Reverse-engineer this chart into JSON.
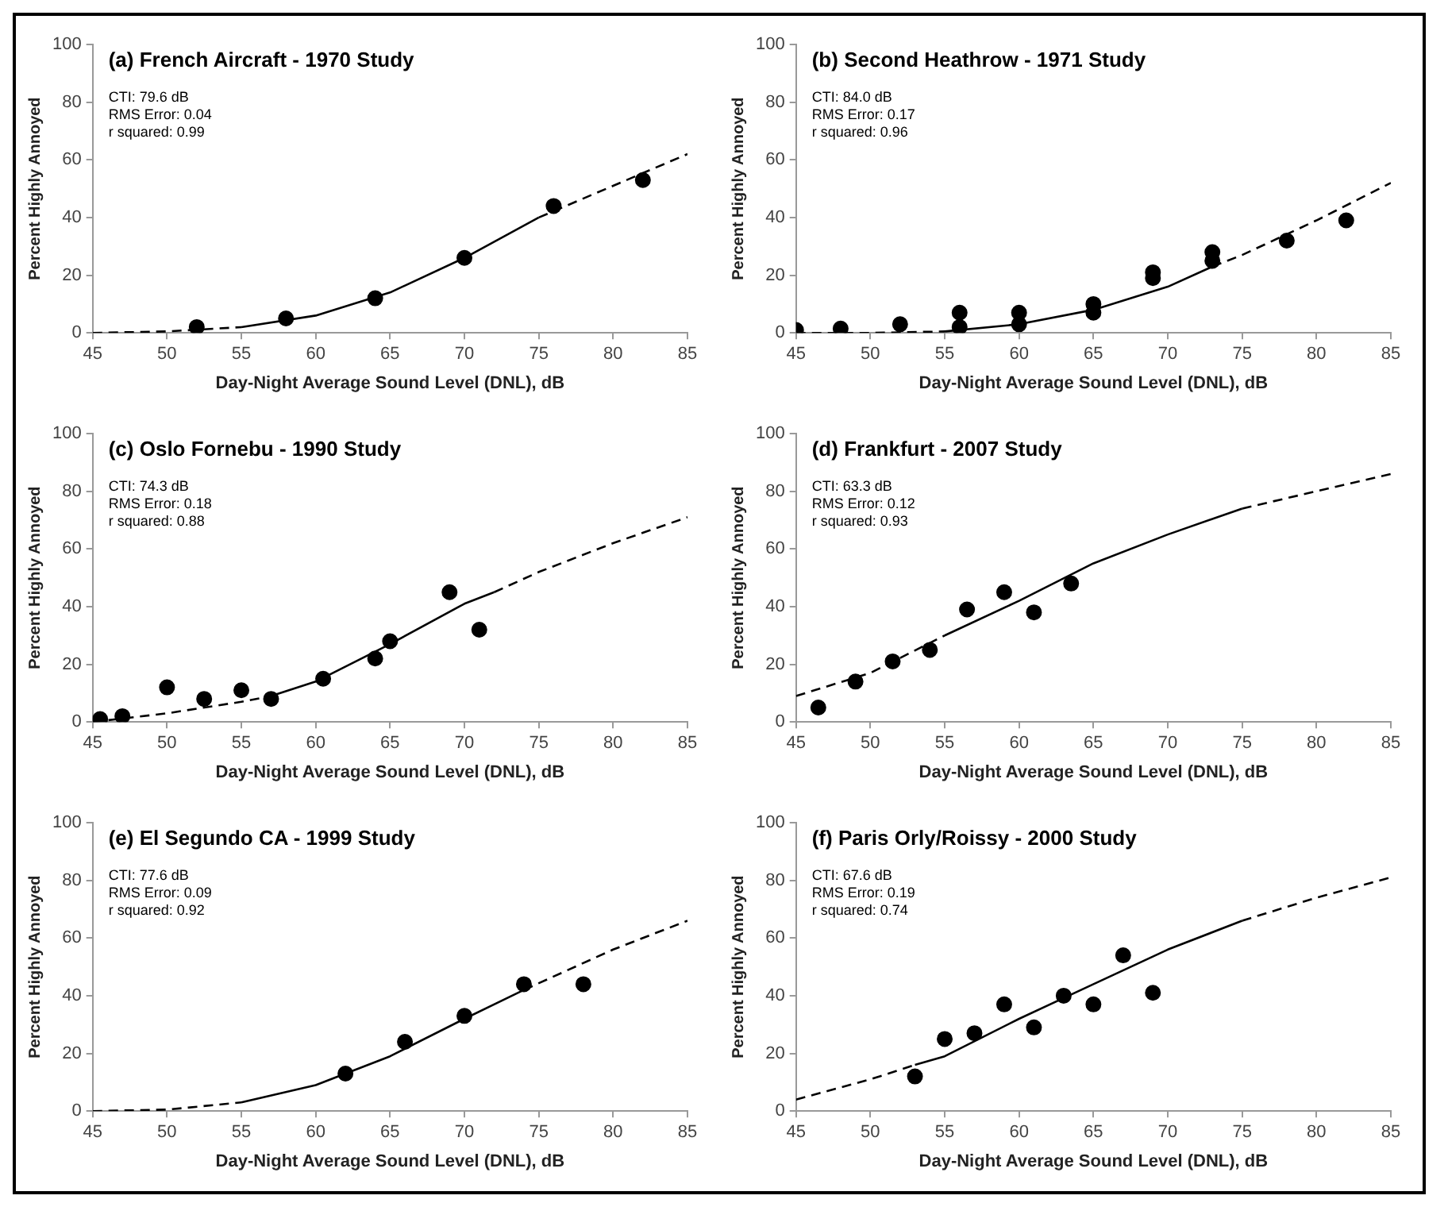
{
  "chart_data": [
    {
      "type": "scatter",
      "title": "(a) French Aircraft - 1970 Study",
      "xlabel": "Day-Night Average Sound Level (DNL), dB",
      "ylabel": "Percent Highly Annoyed",
      "xlim": [
        45,
        85
      ],
      "xticks": [
        45,
        50,
        55,
        60,
        65,
        70,
        75,
        80,
        85
      ],
      "ylim": [
        0,
        100
      ],
      "yticks": [
        0,
        20,
        40,
        60,
        80,
        100
      ],
      "annotations": [
        "CTI: 79.6 dB",
        "RMS Error: 0.04",
        "r squared: 0.99"
      ],
      "series": [
        {
          "type": "scatter",
          "marker": "circle",
          "color": "#000000",
          "x": [
            52,
            58,
            64,
            70,
            76,
            82
          ],
          "values": [
            2,
            5,
            12,
            26,
            44,
            53
          ]
        },
        {
          "type": "line",
          "line_style": "solid",
          "color": "#000000",
          "x": [
            55,
            60,
            65,
            70,
            75
          ],
          "values": [
            2,
            6,
            14,
            26,
            40
          ]
        },
        {
          "type": "line",
          "line_style": "dashed",
          "color": "#000000",
          "x": [
            45,
            50,
            55,
            65,
            75,
            80,
            85
          ],
          "values": [
            0,
            0.5,
            2,
            null,
            40,
            51,
            62
          ]
        }
      ]
    },
    {
      "type": "scatter",
      "title": "(b) Second Heathrow - 1971 Study",
      "xlabel": "Day-Night Average Sound Level (DNL), dB",
      "ylabel": "Percent Highly Annoyed",
      "xlim": [
        45,
        85
      ],
      "xticks": [
        45,
        50,
        55,
        60,
        65,
        70,
        75,
        80,
        85
      ],
      "ylim": [
        0,
        100
      ],
      "yticks": [
        0,
        20,
        40,
        60,
        80,
        100
      ],
      "annotations": [
        "CTI: 84.0 dB",
        "RMS Error: 0.17",
        "r squared: 0.96"
      ],
      "series": [
        {
          "type": "scatter",
          "marker": "circle",
          "color": "#000000",
          "x": [
            45,
            48,
            52,
            56,
            56,
            60,
            60,
            65,
            65,
            69,
            69,
            73,
            73,
            78,
            82
          ],
          "values": [
            1,
            1.5,
            3,
            7,
            2,
            7,
            3,
            10,
            7,
            21,
            19,
            28,
            25,
            32,
            39
          ]
        },
        {
          "type": "line",
          "line_style": "solid",
          "color": "#000000",
          "x": [
            55,
            60,
            65,
            70,
            73
          ],
          "values": [
            0.5,
            3,
            8,
            16,
            23
          ]
        },
        {
          "type": "line",
          "line_style": "dashed",
          "color": "#000000",
          "x": [
            45,
            50,
            55,
            65,
            73,
            75,
            80,
            85
          ],
          "values": [
            0,
            0,
            0.5,
            null,
            23,
            27,
            39,
            52
          ]
        }
      ]
    },
    {
      "type": "scatter",
      "title": "(c) Oslo Fornebu - 1990 Study",
      "xlabel": "Day-Night Average Sound Level (DNL), dB",
      "ylabel": "Percent Highly Annoyed",
      "xlim": [
        45,
        85
      ],
      "xticks": [
        45,
        50,
        55,
        60,
        65,
        70,
        75,
        80,
        85
      ],
      "ylim": [
        0,
        100
      ],
      "yticks": [
        0,
        20,
        40,
        60,
        80,
        100
      ],
      "annotations": [
        "CTI: 74.3 dB",
        "RMS Error: 0.18",
        "r squared: 0.88"
      ],
      "series": [
        {
          "type": "scatter",
          "marker": "circle",
          "color": "#000000",
          "x": [
            45.5,
            47,
            50,
            52.5,
            55,
            57,
            60.5,
            64,
            65,
            69,
            71
          ],
          "values": [
            1,
            2,
            12,
            8,
            11,
            8,
            15,
            22,
            28,
            45,
            32
          ]
        },
        {
          "type": "line",
          "line_style": "solid",
          "color": "#000000",
          "x": [
            57,
            60,
            65,
            70,
            72
          ],
          "values": [
            9,
            14,
            27,
            41,
            45
          ]
        },
        {
          "type": "line",
          "line_style": "dashed",
          "color": "#000000",
          "x": [
            45,
            50,
            55,
            57,
            65,
            72,
            75,
            80,
            85
          ],
          "values": [
            0,
            3,
            7,
            9,
            null,
            45,
            52,
            62,
            71
          ]
        }
      ]
    },
    {
      "type": "scatter",
      "title": "(d) Frankfurt - 2007 Study",
      "xlabel": "Day-Night Average Sound Level (DNL), dB",
      "ylabel": "Percent Highly Annoyed",
      "xlim": [
        45,
        85
      ],
      "xticks": [
        45,
        50,
        55,
        60,
        65,
        70,
        75,
        80,
        85
      ],
      "ylim": [
        0,
        100
      ],
      "yticks": [
        0,
        20,
        40,
        60,
        80,
        100
      ],
      "annotations": [
        "CTI: 63.3 dB",
        "RMS Error: 0.12",
        "r squared: 0.93"
      ],
      "series": [
        {
          "type": "scatter",
          "marker": "circle",
          "color": "#000000",
          "x": [
            46.5,
            49,
            51.5,
            54,
            56.5,
            59,
            61,
            63.5
          ],
          "values": [
            5,
            14,
            21,
            25,
            39,
            45,
            38,
            48
          ]
        },
        {
          "type": "line",
          "line_style": "solid",
          "color": "#000000",
          "x": [
            55,
            60,
            65,
            70,
            75
          ],
          "values": [
            30,
            42,
            55,
            65,
            74
          ]
        },
        {
          "type": "line",
          "line_style": "dashed",
          "color": "#000000",
          "x": [
            45,
            50,
            55,
            65,
            75,
            80,
            85
          ],
          "values": [
            9,
            17,
            30,
            null,
            74,
            80,
            86
          ]
        }
      ]
    },
    {
      "type": "scatter",
      "title": "(e) El Segundo CA - 1999 Study",
      "xlabel": "Day-Night Average Sound Level (DNL), dB",
      "ylabel": "Percent Highly Annoyed",
      "xlim": [
        45,
        85
      ],
      "xticks": [
        45,
        50,
        55,
        60,
        65,
        70,
        75,
        80,
        85
      ],
      "ylim": [
        0,
        100
      ],
      "yticks": [
        0,
        20,
        40,
        60,
        80,
        100
      ],
      "annotations": [
        "CTI: 77.6 dB",
        "RMS Error: 0.09",
        "r squared: 0.92"
      ],
      "series": [
        {
          "type": "scatter",
          "marker": "circle",
          "color": "#000000",
          "x": [
            62,
            66,
            70,
            74,
            78
          ],
          "values": [
            13,
            24,
            33,
            44,
            44
          ]
        },
        {
          "type": "line",
          "line_style": "solid",
          "color": "#000000",
          "x": [
            55,
            60,
            65,
            70,
            74
          ],
          "values": [
            3,
            9,
            19,
            32,
            42
          ]
        },
        {
          "type": "line",
          "line_style": "dashed",
          "color": "#000000",
          "x": [
            45,
            50,
            55,
            65,
            74,
            80,
            85
          ],
          "values": [
            0,
            0.5,
            3,
            null,
            42,
            56,
            66
          ]
        }
      ]
    },
    {
      "type": "scatter",
      "title": "(f) Paris Orly/Roissy - 2000 Study",
      "xlabel": "Day-Night Average Sound Level (DNL), dB",
      "ylabel": "Percent Highly Annoyed",
      "xlim": [
        45,
        85
      ],
      "xticks": [
        45,
        50,
        55,
        60,
        65,
        70,
        75,
        80,
        85
      ],
      "ylim": [
        0,
        100
      ],
      "yticks": [
        0,
        20,
        40,
        60,
        80,
        100
      ],
      "annotations": [
        "CTI: 67.6 dB",
        "RMS Error: 0.19",
        "r squared: 0.74"
      ],
      "series": [
        {
          "type": "scatter",
          "marker": "circle",
          "color": "#000000",
          "x": [
            53,
            55,
            57,
            59,
            61,
            63,
            65,
            67,
            69
          ],
          "values": [
            12,
            25,
            27,
            37,
            29,
            40,
            37,
            54,
            41
          ]
        },
        {
          "type": "line",
          "line_style": "solid",
          "color": "#000000",
          "x": [
            53,
            55,
            60,
            65,
            70,
            75
          ],
          "values": [
            16,
            19,
            32,
            44,
            56,
            66
          ]
        },
        {
          "type": "line",
          "line_style": "dashed",
          "color": "#000000",
          "x": [
            45,
            50,
            53,
            65,
            75,
            80,
            85
          ],
          "values": [
            4,
            11,
            16,
            null,
            66,
            74,
            81
          ]
        }
      ]
    }
  ]
}
